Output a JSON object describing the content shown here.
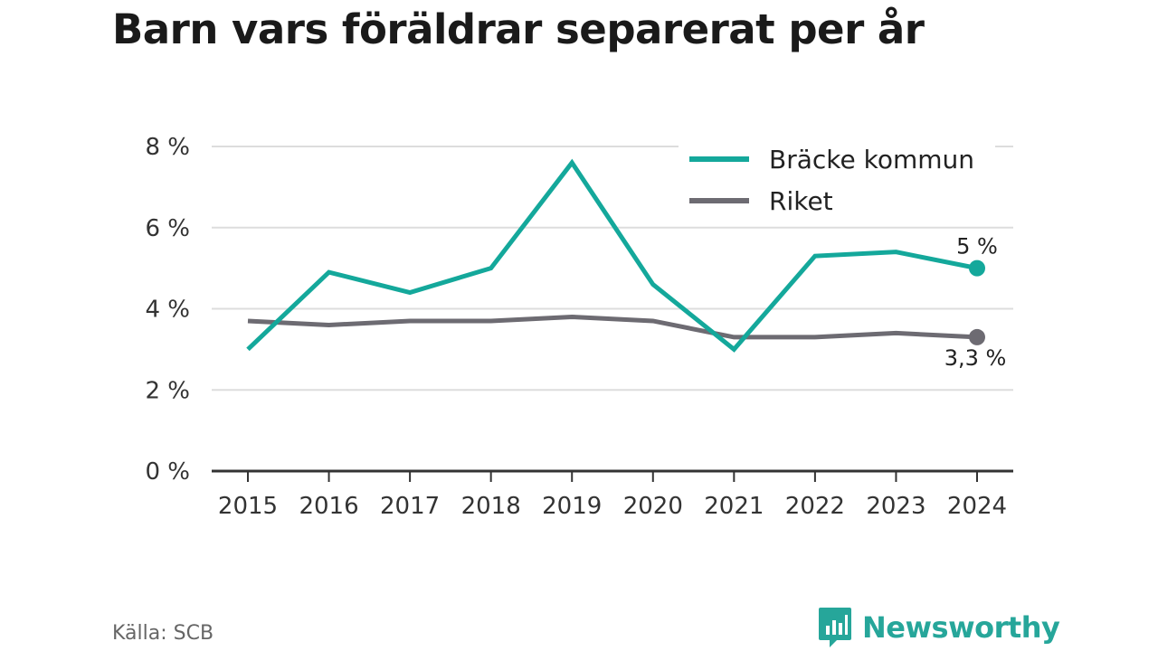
{
  "title": "Barn vars föräldrar separerat per år",
  "source": "Källa: SCB",
  "brand": {
    "name": "Newsworthy",
    "icon": "newsworthy-logo-icon"
  },
  "colors": {
    "series1": "#14a89b",
    "series2": "#6d6b72",
    "grid": "#dddddd",
    "axis": "#333333",
    "text": "#333333"
  },
  "chart_data": {
    "type": "line",
    "title": "Barn vars föräldrar separerat per år",
    "x": [
      "2015",
      "2016",
      "2017",
      "2018",
      "2019",
      "2020",
      "2021",
      "2022",
      "2023",
      "2024"
    ],
    "series": [
      {
        "name": "Bräcke kommun",
        "color": "#14a89b",
        "values": [
          3.0,
          4.9,
          4.4,
          5.0,
          7.6,
          4.6,
          3.0,
          5.3,
          5.4,
          5.0
        ],
        "end_label": "5 %"
      },
      {
        "name": "Riket",
        "color": "#6d6b72",
        "values": [
          3.7,
          3.6,
          3.7,
          3.7,
          3.8,
          3.7,
          3.3,
          3.3,
          3.4,
          3.3
        ],
        "end_label": "3,3 %"
      }
    ],
    "yticks": [
      "0 %",
      "2 %",
      "4 %",
      "6 %",
      "8 %"
    ],
    "ylim": [
      0,
      8
    ],
    "grid": true,
    "legend": "top-right"
  }
}
